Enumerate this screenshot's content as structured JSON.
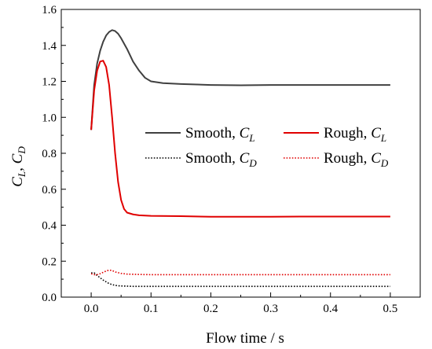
{
  "chart_data": {
    "type": "line",
    "title": "",
    "xlabel": "Flow time / s",
    "ylabel": {
      "base1": "C",
      "sub1": "L",
      "sep": ", ",
      "base2": "C",
      "sub2": "D"
    },
    "xlim": [
      -0.05,
      0.55
    ],
    "ylim": [
      0.0,
      1.6
    ],
    "xticks": [
      0.0,
      0.1,
      0.2,
      0.3,
      0.4,
      0.5
    ],
    "xtick_labels": [
      "0.0",
      "0.1",
      "0.2",
      "0.3",
      "0.4",
      "0.5"
    ],
    "yticks": [
      0.0,
      0.2,
      0.4,
      0.6,
      0.8,
      1.0,
      1.2,
      1.4,
      1.6
    ],
    "ytick_labels": [
      "0.0",
      "0.2",
      "0.4",
      "0.6",
      "0.8",
      "1.0",
      "1.2",
      "1.4",
      "1.6"
    ],
    "grid": false,
    "legend_placement": "center-right",
    "series": [
      {
        "name": "Smooth, C_L",
        "label_prefix": "Smooth, ",
        "label_var": "C",
        "label_sub": "L",
        "color": "#404040",
        "style": "solid",
        "points": [
          [
            0.0,
            0.93
          ],
          [
            0.005,
            1.18
          ],
          [
            0.01,
            1.3
          ],
          [
            0.015,
            1.37
          ],
          [
            0.02,
            1.42
          ],
          [
            0.025,
            1.455
          ],
          [
            0.03,
            1.475
          ],
          [
            0.035,
            1.485
          ],
          [
            0.04,
            1.48
          ],
          [
            0.045,
            1.465
          ],
          [
            0.05,
            1.44
          ],
          [
            0.06,
            1.38
          ],
          [
            0.07,
            1.31
          ],
          [
            0.08,
            1.26
          ],
          [
            0.09,
            1.22
          ],
          [
            0.1,
            1.2
          ],
          [
            0.12,
            1.19
          ],
          [
            0.15,
            1.185
          ],
          [
            0.2,
            1.18
          ],
          [
            0.25,
            1.178
          ],
          [
            0.3,
            1.18
          ],
          [
            0.35,
            1.18
          ],
          [
            0.4,
            1.18
          ],
          [
            0.45,
            1.18
          ],
          [
            0.5,
            1.18
          ]
        ]
      },
      {
        "name": "Rough, C_L",
        "label_prefix": "Rough, ",
        "label_var": "C",
        "label_sub": "L",
        "color": "#e00000",
        "style": "solid",
        "points": [
          [
            0.0,
            0.93
          ],
          [
            0.005,
            1.15
          ],
          [
            0.01,
            1.26
          ],
          [
            0.015,
            1.31
          ],
          [
            0.02,
            1.315
          ],
          [
            0.025,
            1.28
          ],
          [
            0.03,
            1.18
          ],
          [
            0.035,
            1.0
          ],
          [
            0.04,
            0.8
          ],
          [
            0.045,
            0.64
          ],
          [
            0.05,
            0.54
          ],
          [
            0.055,
            0.49
          ],
          [
            0.06,
            0.47
          ],
          [
            0.07,
            0.46
          ],
          [
            0.08,
            0.455
          ],
          [
            0.1,
            0.452
          ],
          [
            0.15,
            0.45
          ],
          [
            0.2,
            0.447
          ],
          [
            0.25,
            0.447
          ],
          [
            0.3,
            0.447
          ],
          [
            0.35,
            0.448
          ],
          [
            0.4,
            0.448
          ],
          [
            0.45,
            0.448
          ],
          [
            0.5,
            0.448
          ]
        ]
      },
      {
        "name": "Smooth, C_D",
        "label_prefix": "Smooth, ",
        "label_var": "C",
        "label_sub": "D",
        "color": "#000000",
        "style": "dotted",
        "points": [
          [
            0.0,
            0.135
          ],
          [
            0.005,
            0.135
          ],
          [
            0.01,
            0.12
          ],
          [
            0.02,
            0.095
          ],
          [
            0.03,
            0.075
          ],
          [
            0.04,
            0.065
          ],
          [
            0.05,
            0.062
          ],
          [
            0.07,
            0.06
          ],
          [
            0.1,
            0.06
          ],
          [
            0.2,
            0.06
          ],
          [
            0.3,
            0.06
          ],
          [
            0.4,
            0.06
          ],
          [
            0.5,
            0.06
          ]
        ]
      },
      {
        "name": "Rough, C_D",
        "label_prefix": "Rough, ",
        "label_var": "C",
        "label_sub": "D",
        "color": "#e00000",
        "style": "dotted",
        "points": [
          [
            0.0,
            0.13
          ],
          [
            0.005,
            0.125
          ],
          [
            0.01,
            0.125
          ],
          [
            0.015,
            0.13
          ],
          [
            0.02,
            0.138
          ],
          [
            0.025,
            0.145
          ],
          [
            0.03,
            0.15
          ],
          [
            0.035,
            0.148
          ],
          [
            0.04,
            0.14
          ],
          [
            0.05,
            0.132
          ],
          [
            0.06,
            0.128
          ],
          [
            0.08,
            0.126
          ],
          [
            0.1,
            0.125
          ],
          [
            0.2,
            0.125
          ],
          [
            0.3,
            0.125
          ],
          [
            0.4,
            0.125
          ],
          [
            0.5,
            0.125
          ]
        ]
      }
    ]
  }
}
